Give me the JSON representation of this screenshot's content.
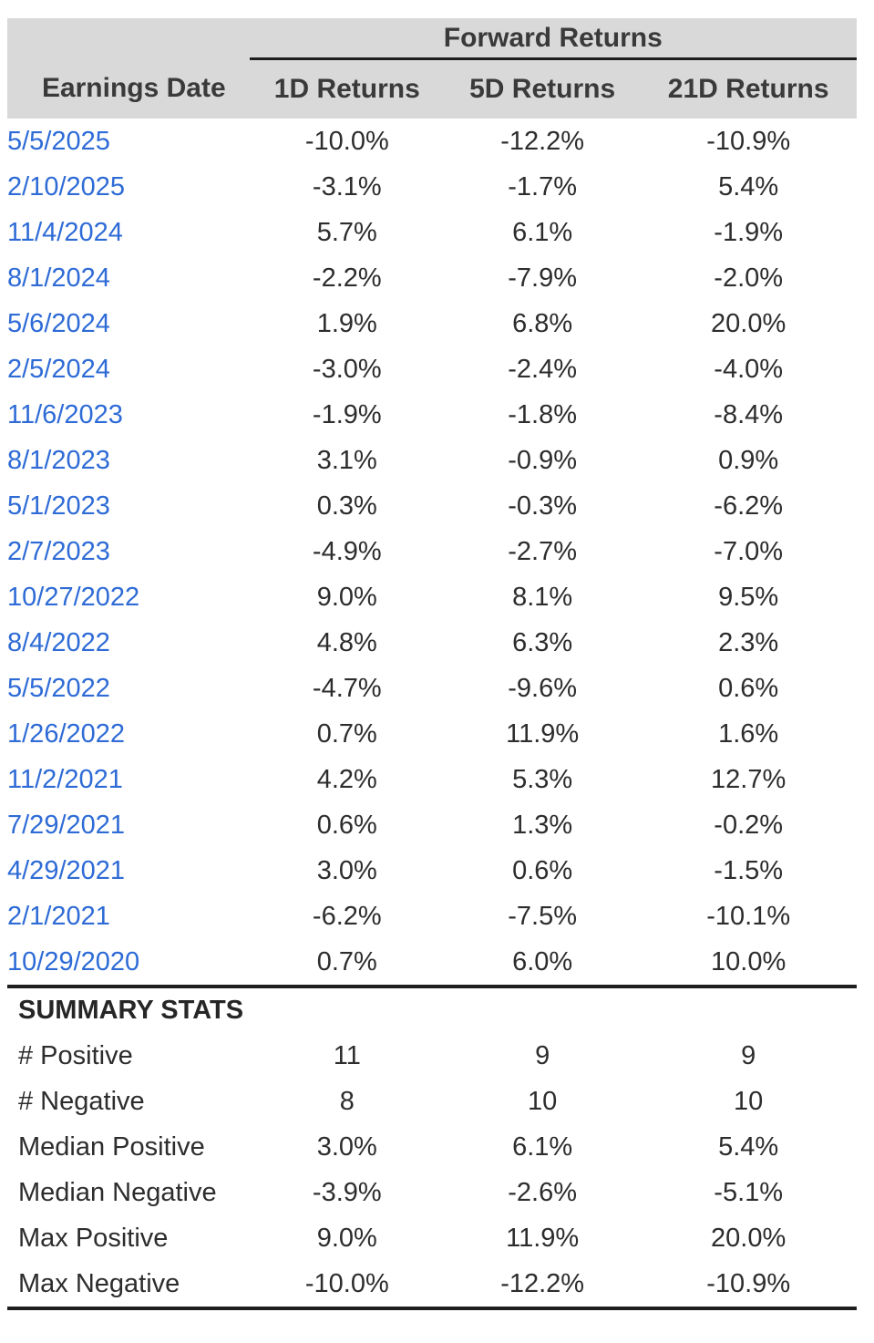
{
  "chart_data": {
    "type": "table",
    "title": "Forward Returns",
    "summary_title": "SUMMARY STATS",
    "columns": [
      "Earnings Date",
      "1D Returns",
      "5D Returns",
      "21D Returns"
    ],
    "rows": [
      {
        "date": "5/5/2025",
        "r1": "-10.0%",
        "r5": "-12.2%",
        "r21": "-10.9%"
      },
      {
        "date": "2/10/2025",
        "r1": "-3.1%",
        "r5": "-1.7%",
        "r21": "5.4%"
      },
      {
        "date": "11/4/2024",
        "r1": "5.7%",
        "r5": "6.1%",
        "r21": "-1.9%"
      },
      {
        "date": "8/1/2024",
        "r1": "-2.2%",
        "r5": "-7.9%",
        "r21": "-2.0%"
      },
      {
        "date": "5/6/2024",
        "r1": "1.9%",
        "r5": "6.8%",
        "r21": "20.0%"
      },
      {
        "date": "2/5/2024",
        "r1": "-3.0%",
        "r5": "-2.4%",
        "r21": "-4.0%"
      },
      {
        "date": "11/6/2023",
        "r1": "-1.9%",
        "r5": "-1.8%",
        "r21": "-8.4%"
      },
      {
        "date": "8/1/2023",
        "r1": "3.1%",
        "r5": "-0.9%",
        "r21": "0.9%"
      },
      {
        "date": "5/1/2023",
        "r1": "0.3%",
        "r5": "-0.3%",
        "r21": "-6.2%"
      },
      {
        "date": "2/7/2023",
        "r1": "-4.9%",
        "r5": "-2.7%",
        "r21": "-7.0%"
      },
      {
        "date": "10/27/2022",
        "r1": "9.0%",
        "r5": "8.1%",
        "r21": "9.5%"
      },
      {
        "date": "8/4/2022",
        "r1": "4.8%",
        "r5": "6.3%",
        "r21": "2.3%"
      },
      {
        "date": "5/5/2022",
        "r1": "-4.7%",
        "r5": "-9.6%",
        "r21": "0.6%"
      },
      {
        "date": "1/26/2022",
        "r1": "0.7%",
        "r5": "11.9%",
        "r21": "1.6%"
      },
      {
        "date": "11/2/2021",
        "r1": "4.2%",
        "r5": "5.3%",
        "r21": "12.7%"
      },
      {
        "date": "7/29/2021",
        "r1": "0.6%",
        "r5": "1.3%",
        "r21": "-0.2%"
      },
      {
        "date": "4/29/2021",
        "r1": "3.0%",
        "r5": "0.6%",
        "r21": "-1.5%"
      },
      {
        "date": "2/1/2021",
        "r1": "-6.2%",
        "r5": "-7.5%",
        "r21": "-10.1%"
      },
      {
        "date": "10/29/2020",
        "r1": "0.7%",
        "r5": "6.0%",
        "r21": "10.0%"
      }
    ],
    "summary_rows": [
      {
        "label": "# Positive",
        "r1": "11",
        "r5": "9",
        "r21": "9"
      },
      {
        "label": "# Negative",
        "r1": "8",
        "r5": "10",
        "r21": "10"
      },
      {
        "label": "Median Positive",
        "r1": "3.0%",
        "r5": "6.1%",
        "r21": "5.4%"
      },
      {
        "label": "Median Negative",
        "r1": "-3.9%",
        "r5": "-2.6%",
        "r21": "-5.1%"
      },
      {
        "label": "Max Positive",
        "r1": "9.0%",
        "r5": "11.9%",
        "r21": "20.0%"
      },
      {
        "label": "Max Negative",
        "r1": "-10.0%",
        "r5": "-12.2%",
        "r21": "-10.9%"
      }
    ]
  },
  "colors": {
    "header_bg": "#d9d9d9",
    "header_text": "#3a3a3a",
    "date_link": "#2e6bd6",
    "value_text": "#2d2d2d",
    "rule_line": "#1e1e1e"
  }
}
